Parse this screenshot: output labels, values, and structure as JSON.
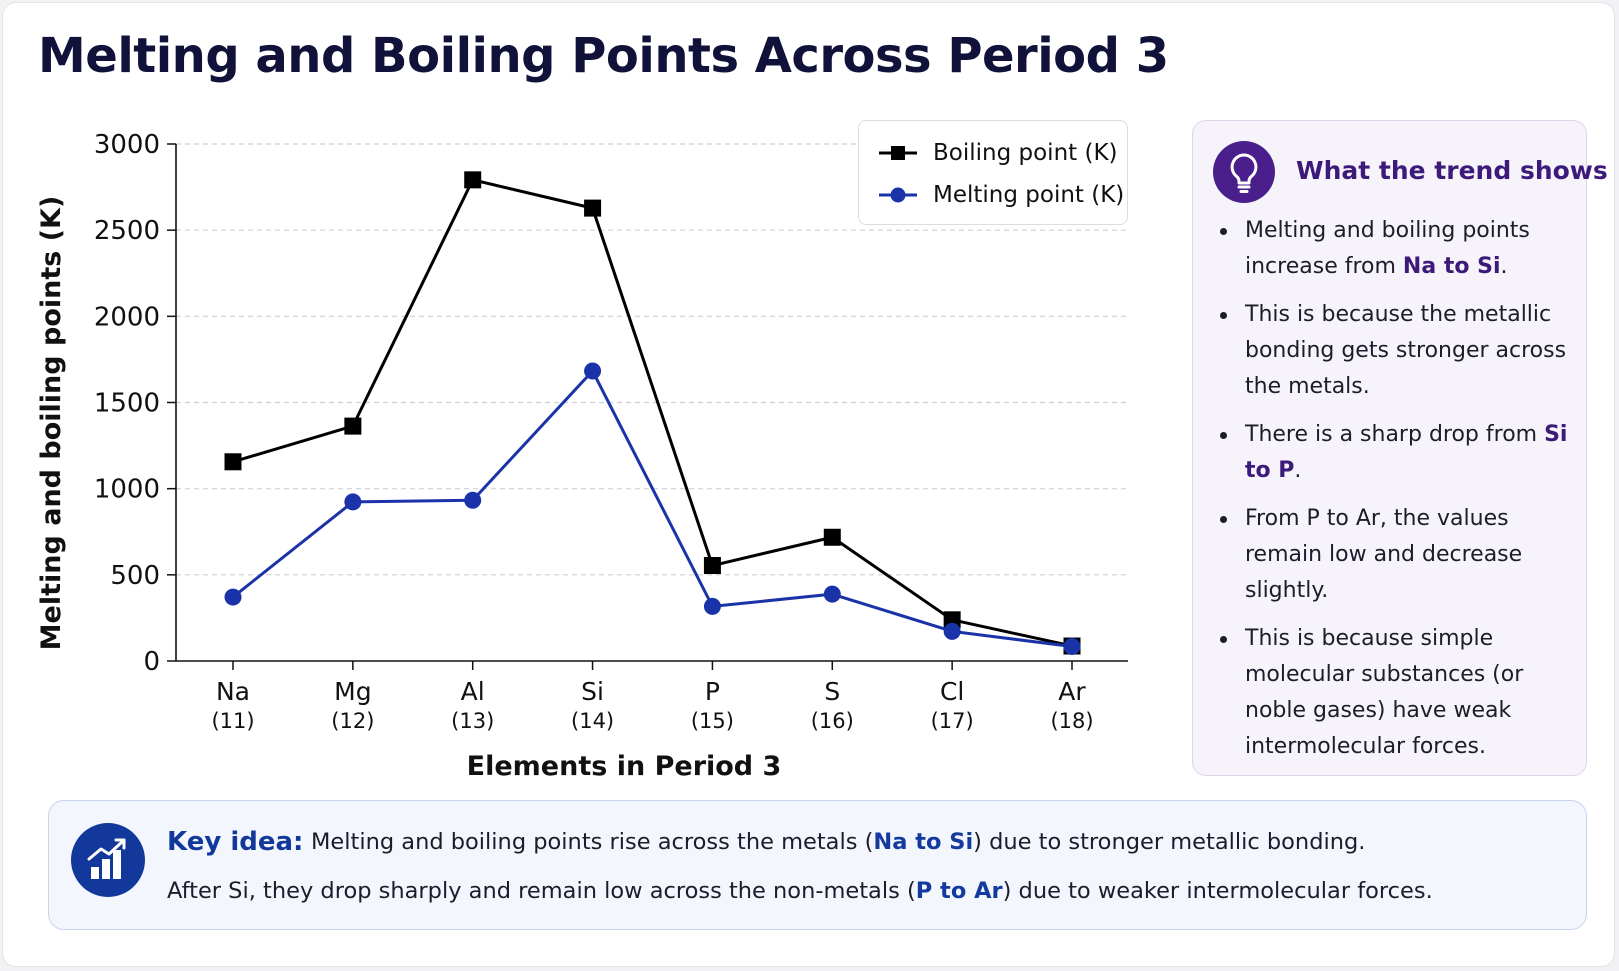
{
  "title": "Melting and Boiling Points Across Period 3",
  "colors": {
    "boiling": "#000000",
    "melting": "#1a33a8",
    "accent_purple": "#4a1f8c",
    "accent_blue": "#11389a"
  },
  "chart_data": {
    "type": "line",
    "categories": [
      {
        "symbol": "Na",
        "number": "(11)"
      },
      {
        "symbol": "Mg",
        "number": "(12)"
      },
      {
        "symbol": "Al",
        "number": "(13)"
      },
      {
        "symbol": "Si",
        "number": "(14)"
      },
      {
        "symbol": "P",
        "number": "(15)"
      },
      {
        "symbol": "S",
        "number": "(16)"
      },
      {
        "symbol": "Cl",
        "number": "(17)"
      },
      {
        "symbol": "Ar",
        "number": "(18)"
      }
    ],
    "series": [
      {
        "name": "Boiling point (K)",
        "marker": "square",
        "values": [
          1156,
          1363,
          2792,
          2628,
          554,
          718,
          239,
          87
        ]
      },
      {
        "name": "Melting point (K)",
        "marker": "circle",
        "values": [
          371,
          923,
          933,
          1683,
          317,
          388,
          172,
          84
        ]
      }
    ],
    "xlabel": "Elements in Period 3",
    "ylabel": "Melting and boiling points (K)",
    "ylim": [
      0,
      3000
    ],
    "yticks": [
      "0",
      "500",
      "1000",
      "1500",
      "2000",
      "2500",
      "3000"
    ],
    "grid": "horizontal-dashed",
    "legend": "top-right"
  },
  "panel": {
    "heading": "What the trend shows",
    "icon": "lightbulb-icon",
    "bullets": [
      {
        "parts": [
          {
            "t": "Melting and boiling points increase from "
          },
          {
            "t": "Na to Si",
            "hl": true
          },
          {
            "t": "."
          }
        ]
      },
      {
        "parts": [
          {
            "t": "This is because the metallic bonding gets stronger across the metals."
          }
        ]
      },
      {
        "parts": [
          {
            "t": "There is a sharp drop from "
          },
          {
            "t": "Si to P",
            "hl": true
          },
          {
            "t": "."
          }
        ]
      },
      {
        "parts": [
          {
            "t": "From P to Ar, the values remain low and decrease slightly."
          }
        ]
      },
      {
        "parts": [
          {
            "t": "This is because simple molecular substances (or noble gases) have weak intermolecular forces."
          }
        ]
      }
    ]
  },
  "key_idea": {
    "label": "Key idea:",
    "icon": "bar-chart-icon",
    "line1": {
      "a": "Melting and boiling points rise across the metals (",
      "hl": "Na to Si",
      "b": ") due to stronger metallic bonding."
    },
    "line2": {
      "a": "After Si, they drop sharply and remain low across the non-metals (",
      "hl": "P to Ar",
      "b": ") due to weaker intermolecular forces."
    }
  }
}
